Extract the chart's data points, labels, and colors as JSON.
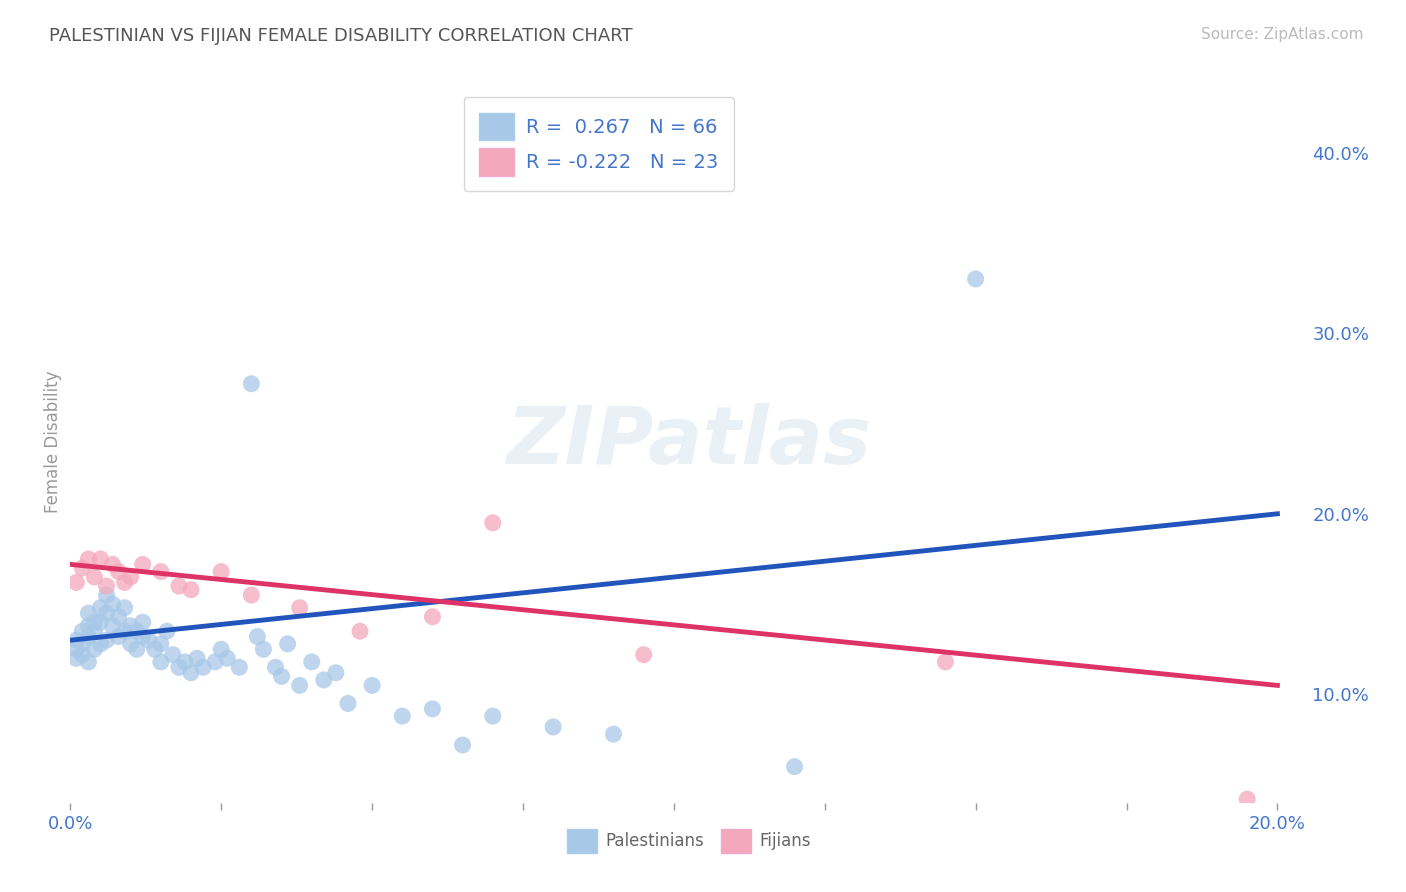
{
  "title": "PALESTINIAN VS FIJIAN FEMALE DISABILITY CORRELATION CHART",
  "source": "Source: ZipAtlas.com",
  "ylabel": "Female Disability",
  "xlim": [
    0.0,
    0.205
  ],
  "ylim": [
    0.04,
    0.44
  ],
  "xtick_vals": [
    0.0,
    0.025,
    0.05,
    0.075,
    0.1,
    0.125,
    0.15,
    0.175,
    0.2
  ],
  "xtick_labels_show": {
    "0.0": "0.0%",
    "0.20": "20.0%"
  },
  "ytick_vals": [
    0.1,
    0.2,
    0.3,
    0.4
  ],
  "ytick_labels": [
    "10.0%",
    "20.0%",
    "30.0%",
    "40.0%"
  ],
  "R_palestinian": 0.267,
  "N_palestinian": 66,
  "R_fijian": -0.222,
  "N_fijian": 23,
  "color_palestinian": "#a8c8e8",
  "color_fijian": "#f4a8bc",
  "line_color_palestinian": "#2255bb",
  "line_color_fijian": "#dd3366",
  "background_color": "#ffffff",
  "grid_color": "#c8c8c8",
  "title_color": "#555555",
  "axis_label_color": "#4477cc",
  "watermark": "ZIPatlas",
  "palestinian_x": [
    0.001,
    0.001,
    0.001,
    0.002,
    0.002,
    0.002,
    0.003,
    0.003,
    0.003,
    0.003,
    0.004,
    0.004,
    0.004,
    0.005,
    0.005,
    0.005,
    0.006,
    0.006,
    0.006,
    0.007,
    0.007,
    0.008,
    0.008,
    0.009,
    0.009,
    0.01,
    0.01,
    0.011,
    0.011,
    0.012,
    0.012,
    0.013,
    0.014,
    0.015,
    0.015,
    0.016,
    0.017,
    0.018,
    0.019,
    0.02,
    0.021,
    0.022,
    0.024,
    0.025,
    0.026,
    0.028,
    0.03,
    0.031,
    0.032,
    0.034,
    0.035,
    0.036,
    0.038,
    0.04,
    0.042,
    0.044,
    0.046,
    0.05,
    0.055,
    0.06,
    0.065,
    0.07,
    0.08,
    0.09,
    0.12,
    0.15
  ],
  "palestinian_y": [
    0.13,
    0.125,
    0.12,
    0.135,
    0.128,
    0.122,
    0.145,
    0.138,
    0.132,
    0.118,
    0.14,
    0.135,
    0.125,
    0.148,
    0.14,
    0.128,
    0.155,
    0.145,
    0.13,
    0.15,
    0.138,
    0.143,
    0.132,
    0.148,
    0.135,
    0.138,
    0.128,
    0.135,
    0.125,
    0.14,
    0.132,
    0.13,
    0.125,
    0.128,
    0.118,
    0.135,
    0.122,
    0.115,
    0.118,
    0.112,
    0.12,
    0.115,
    0.118,
    0.125,
    0.12,
    0.115,
    0.272,
    0.132,
    0.125,
    0.115,
    0.11,
    0.128,
    0.105,
    0.118,
    0.108,
    0.112,
    0.095,
    0.105,
    0.088,
    0.092,
    0.072,
    0.088,
    0.082,
    0.078,
    0.06,
    0.33
  ],
  "fijian_x": [
    0.001,
    0.002,
    0.003,
    0.004,
    0.005,
    0.006,
    0.007,
    0.008,
    0.009,
    0.01,
    0.012,
    0.015,
    0.018,
    0.02,
    0.025,
    0.03,
    0.038,
    0.048,
    0.06,
    0.07,
    0.095,
    0.145,
    0.195
  ],
  "fijian_y": [
    0.162,
    0.17,
    0.175,
    0.165,
    0.175,
    0.16,
    0.172,
    0.168,
    0.162,
    0.165,
    0.172,
    0.168,
    0.16,
    0.158,
    0.168,
    0.155,
    0.148,
    0.135,
    0.143,
    0.195,
    0.122,
    0.118,
    0.042
  ],
  "blue_line_y0": 0.13,
  "blue_line_y1": 0.2,
  "pink_line_y0": 0.172,
  "pink_line_y1": 0.105
}
